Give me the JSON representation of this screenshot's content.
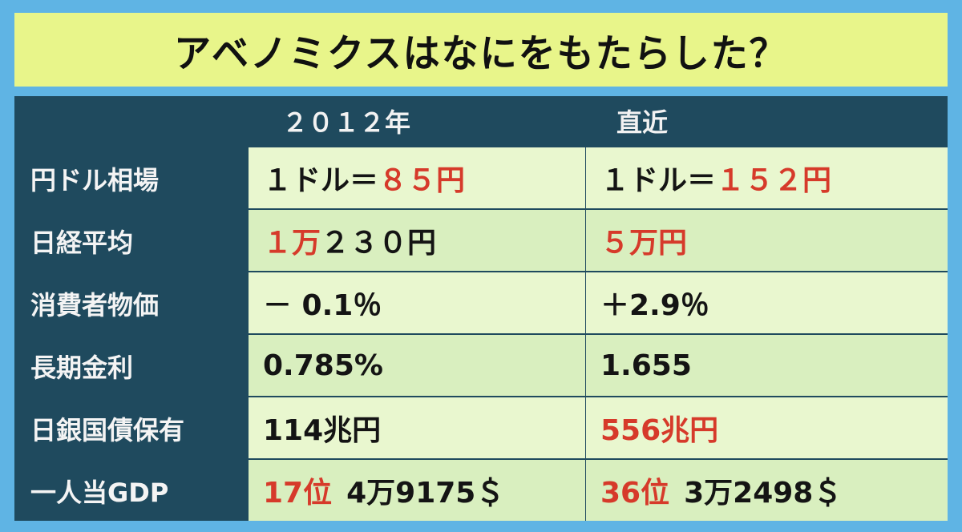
{
  "title": "アベノミクスはなにをもたらした？",
  "columns": {
    "col1": "２０１２年",
    "col2": "直近"
  },
  "rows": [
    {
      "label": "円ドル相場",
      "col1": {
        "black": "１ドル＝",
        "red": "８５円",
        "tail": ""
      },
      "col2": {
        "black": "１ドル＝",
        "red": "１５２円",
        "tail": ""
      }
    },
    {
      "label": "日経平均",
      "col1": {
        "black": "",
        "red": "１万",
        "tail": "２３０円"
      },
      "col2": {
        "black": "",
        "red": "５万円",
        "tail": ""
      }
    },
    {
      "label": "消費者物価",
      "col1": {
        "black": "－ 0.1％",
        "red": "",
        "tail": ""
      },
      "col2": {
        "black": "＋2.9％",
        "red": "",
        "tail": ""
      }
    },
    {
      "label": "長期金利",
      "col1": {
        "black": "0.785%",
        "red": "",
        "tail": ""
      },
      "col2": {
        "black": "1.655",
        "red": "",
        "tail": ""
      }
    },
    {
      "label": "日銀国債保有",
      "col1": {
        "black": "114兆円",
        "red": "",
        "tail": ""
      },
      "col2": {
        "black": "",
        "red": "556兆円",
        "tail": ""
      }
    },
    {
      "label": "一人当GDP",
      "col1": {
        "black": "",
        "red": "17位",
        "tail": "4万9175＄"
      },
      "col2": {
        "black": "",
        "red": "36位",
        "tail": "3万2498＄"
      }
    }
  ],
  "colors": {
    "title_bg": "#e8f58a",
    "table_bg": "#1f4a5e",
    "accent_red": "#d63a2a",
    "page_bg": "#5fb4e4"
  }
}
